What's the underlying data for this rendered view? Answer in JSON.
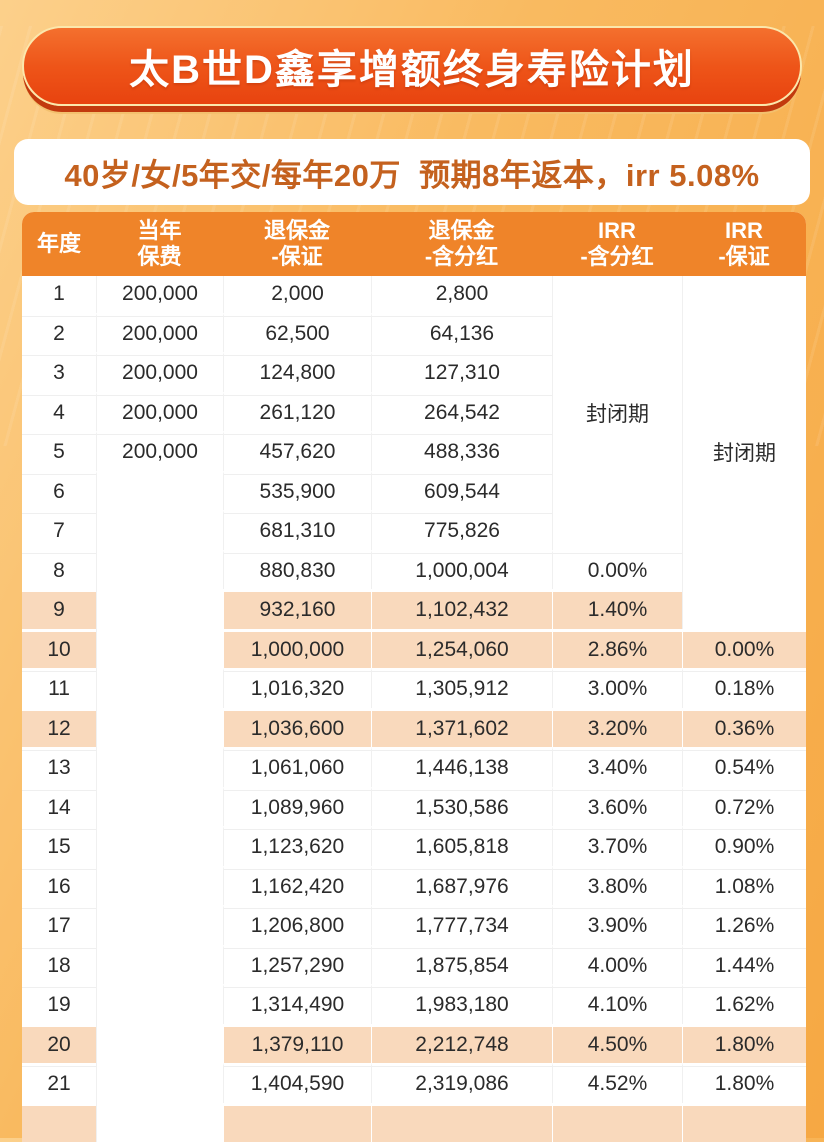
{
  "banner": {
    "title": "太B世D鑫享增额终身寿险计划"
  },
  "summary": {
    "text": "40岁/女/5年交/每年20万  预期8年返本，irr 5.08%"
  },
  "table": {
    "columns": [
      {
        "line1": "年度",
        "line2": ""
      },
      {
        "line1": "当年",
        "line2": "保费"
      },
      {
        "line1": "退保金",
        "line2": "-保证"
      },
      {
        "line1": "退保金",
        "line2": "-含分红"
      },
      {
        "line1": "IRR",
        "line2": "-含分红"
      },
      {
        "line1": "IRR",
        "line2": "-保证"
      }
    ],
    "closed_period_label": "封闭期",
    "highlight_years": [
      9,
      10,
      12,
      20
    ],
    "merges": [
      {
        "col": "premium",
        "start_year": 6,
        "span": 17,
        "label": ""
      },
      {
        "col": "irr_dividend",
        "start_year": 1,
        "span": 7,
        "label": "封闭期"
      },
      {
        "col": "irr_guaranteed",
        "start_year": 1,
        "span": 9,
        "label": "封闭期"
      }
    ],
    "rows": [
      {
        "year": "1",
        "premium": "200,000",
        "cash_guaranteed": "2,000",
        "cash_dividend": "2,800",
        "irr_dividend": "",
        "irr_guaranteed": ""
      },
      {
        "year": "2",
        "premium": "200,000",
        "cash_guaranteed": "62,500",
        "cash_dividend": "64,136",
        "irr_dividend": "",
        "irr_guaranteed": ""
      },
      {
        "year": "3",
        "premium": "200,000",
        "cash_guaranteed": "124,800",
        "cash_dividend": "127,310",
        "irr_dividend": "",
        "irr_guaranteed": ""
      },
      {
        "year": "4",
        "premium": "200,000",
        "cash_guaranteed": "261,120",
        "cash_dividend": "264,542",
        "irr_dividend": "",
        "irr_guaranteed": ""
      },
      {
        "year": "5",
        "premium": "200,000",
        "cash_guaranteed": "457,620",
        "cash_dividend": "488,336",
        "irr_dividend": "",
        "irr_guaranteed": ""
      },
      {
        "year": "6",
        "premium": "",
        "cash_guaranteed": "535,900",
        "cash_dividend": "609,544",
        "irr_dividend": "",
        "irr_guaranteed": ""
      },
      {
        "year": "7",
        "premium": "",
        "cash_guaranteed": "681,310",
        "cash_dividend": "775,826",
        "irr_dividend": "",
        "irr_guaranteed": ""
      },
      {
        "year": "8",
        "premium": "",
        "cash_guaranteed": "880,830",
        "cash_dividend": "1,000,004",
        "irr_dividend": "0.00%",
        "irr_guaranteed": ""
      },
      {
        "year": "9",
        "premium": "",
        "cash_guaranteed": "932,160",
        "cash_dividend": "1,102,432",
        "irr_dividend": "1.40%",
        "irr_guaranteed": ""
      },
      {
        "year": "10",
        "premium": "",
        "cash_guaranteed": "1,000,000",
        "cash_dividend": "1,254,060",
        "irr_dividend": "2.86%",
        "irr_guaranteed": "0.00%"
      },
      {
        "year": "11",
        "premium": "",
        "cash_guaranteed": "1,016,320",
        "cash_dividend": "1,305,912",
        "irr_dividend": "3.00%",
        "irr_guaranteed": "0.18%"
      },
      {
        "year": "12",
        "premium": "",
        "cash_guaranteed": "1,036,600",
        "cash_dividend": "1,371,602",
        "irr_dividend": "3.20%",
        "irr_guaranteed": "0.36%"
      },
      {
        "year": "13",
        "premium": "",
        "cash_guaranteed": "1,061,060",
        "cash_dividend": "1,446,138",
        "irr_dividend": "3.40%",
        "irr_guaranteed": "0.54%"
      },
      {
        "year": "14",
        "premium": "",
        "cash_guaranteed": "1,089,960",
        "cash_dividend": "1,530,586",
        "irr_dividend": "3.60%",
        "irr_guaranteed": "0.72%"
      },
      {
        "year": "15",
        "premium": "",
        "cash_guaranteed": "1,123,620",
        "cash_dividend": "1,605,818",
        "irr_dividend": "3.70%",
        "irr_guaranteed": "0.90%"
      },
      {
        "year": "16",
        "premium": "",
        "cash_guaranteed": "1,162,420",
        "cash_dividend": "1,687,976",
        "irr_dividend": "3.80%",
        "irr_guaranteed": "1.08%"
      },
      {
        "year": "17",
        "premium": "",
        "cash_guaranteed": "1,206,800",
        "cash_dividend": "1,777,734",
        "irr_dividend": "3.90%",
        "irr_guaranteed": "1.26%"
      },
      {
        "year": "18",
        "premium": "",
        "cash_guaranteed": "1,257,290",
        "cash_dividend": "1,875,854",
        "irr_dividend": "4.00%",
        "irr_guaranteed": "1.44%"
      },
      {
        "year": "19",
        "premium": "",
        "cash_guaranteed": "1,314,490",
        "cash_dividend": "1,983,180",
        "irr_dividend": "4.10%",
        "irr_guaranteed": "1.62%"
      },
      {
        "year": "20",
        "premium": "",
        "cash_guaranteed": "1,379,110",
        "cash_dividend": "2,212,748",
        "irr_dividend": "4.50%",
        "irr_guaranteed": "1.80%"
      },
      {
        "year": "21",
        "premium": "",
        "cash_guaranteed": "1,404,590",
        "cash_dividend": "2,319,086",
        "irr_dividend": "4.52%",
        "irr_guaranteed": "1.80%"
      }
    ],
    "partial_bottom_row": {
      "highlight": true
    }
  },
  "chart_data": {
    "type": "table",
    "title": "太B世D鑫享增额终身寿险计划",
    "subtitle": "40岁/女/5年交/每年20万 预期8年返本，irr 5.08%",
    "columns": [
      "年度",
      "当年保费",
      "退保金-保证",
      "退保金-含分红",
      "IRR-含分红",
      "IRR-保证"
    ],
    "rows": [
      [
        "1",
        "200,000",
        "2,000",
        "2,800",
        "封闭期",
        "封闭期"
      ],
      [
        "2",
        "200,000",
        "62,500",
        "64,136",
        "封闭期",
        "封闭期"
      ],
      [
        "3",
        "200,000",
        "124,800",
        "127,310",
        "封闭期",
        "封闭期"
      ],
      [
        "4",
        "200,000",
        "261,120",
        "264,542",
        "封闭期",
        "封闭期"
      ],
      [
        "5",
        "200,000",
        "457,620",
        "488,336",
        "封闭期",
        "封闭期"
      ],
      [
        "6",
        "",
        "535,900",
        "609,544",
        "封闭期",
        "封闭期"
      ],
      [
        "7",
        "",
        "681,310",
        "775,826",
        "封闭期",
        "封闭期"
      ],
      [
        "8",
        "",
        "880,830",
        "1,000,004",
        "0.00%",
        "封闭期"
      ],
      [
        "9",
        "",
        "932,160",
        "1,102,432",
        "1.40%",
        "封闭期"
      ],
      [
        "10",
        "",
        "1,000,000",
        "1,254,060",
        "2.86%",
        "0.00%"
      ],
      [
        "11",
        "",
        "1,016,320",
        "1,305,912",
        "3.00%",
        "0.18%"
      ],
      [
        "12",
        "",
        "1,036,600",
        "1,371,602",
        "3.20%",
        "0.36%"
      ],
      [
        "13",
        "",
        "1,061,060",
        "1,446,138",
        "3.40%",
        "0.54%"
      ],
      [
        "14",
        "",
        "1,089,960",
        "1,530,586",
        "3.60%",
        "0.72%"
      ],
      [
        "15",
        "",
        "1,123,620",
        "1,605,818",
        "3.70%",
        "0.90%"
      ],
      [
        "16",
        "",
        "1,162,420",
        "1,687,976",
        "3.80%",
        "1.08%"
      ],
      [
        "17",
        "",
        "1,206,800",
        "1,777,734",
        "3.90%",
        "1.26%"
      ],
      [
        "18",
        "",
        "1,257,290",
        "1,875,854",
        "4.00%",
        "1.44%"
      ],
      [
        "19",
        "",
        "1,314,490",
        "1,983,180",
        "4.10%",
        "1.62%"
      ],
      [
        "20",
        "",
        "1,379,110",
        "2,212,748",
        "4.50%",
        "1.80%"
      ],
      [
        "21",
        "",
        "1,404,590",
        "2,319,086",
        "4.52%",
        "1.80%"
      ]
    ],
    "highlighted_rows": [
      9,
      10,
      12,
      20
    ],
    "legend_position": "none",
    "grid": true
  },
  "colors": {
    "background_top": "#FCD08B",
    "background_bottom": "#F6A843",
    "banner_red": "#E8430F",
    "banner_shadow": "#C23A0E",
    "banner_border_gold": "#FBE7AC",
    "header_orange": "#EF8429",
    "highlight_peach": "#F9D9BC",
    "subtitle_text": "#C4611E",
    "body_text": "#2B2B2B"
  }
}
